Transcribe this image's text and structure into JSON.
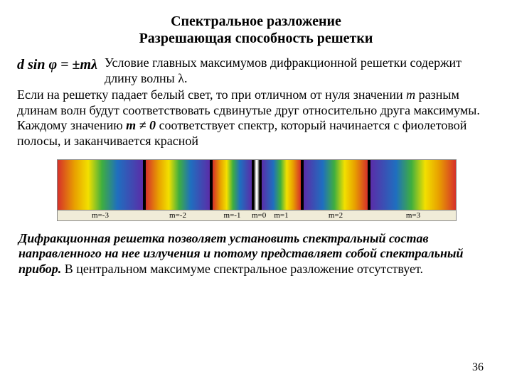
{
  "title_line1": "Спектральное разложение",
  "title_line2": "Разрешающая способность решетки",
  "formula": "d sin φ = ±mλ",
  "para1_a": "Условие главных максимумов дифракционной решетки содержит длину волны λ.",
  "para1_b": "Если на решетку падает белый свет, то при отличном от нуля значении ",
  "para1_m": "m",
  "para1_c": " разным длинам волн будут соответствовать сдвинутые друг относительно друга максимумы. Каждому значению ",
  "para1_mneq": "m ≠ 0",
  "para1_d": " соответствует спектр, который начинается с фиолетовой полосы, и заканчивается красной",
  "spectrum": {
    "orders": [
      {
        "w": 120,
        "kind": "spec-left"
      },
      {
        "w": 4,
        "kind": "gap"
      },
      {
        "w": 90,
        "kind": "spec-left"
      },
      {
        "w": 4,
        "kind": "gap"
      },
      {
        "w": 55,
        "kind": "spec-left"
      },
      {
        "w": 14,
        "kind": "center"
      },
      {
        "w": 55,
        "kind": "spec-right"
      },
      {
        "w": 4,
        "kind": "gap"
      },
      {
        "w": 90,
        "kind": "spec-right"
      },
      {
        "w": 4,
        "kind": "gap"
      },
      {
        "w": 120,
        "kind": "spec-right"
      }
    ],
    "labels": [
      {
        "w": 120,
        "t": "m=-3"
      },
      {
        "w": 4,
        "t": ""
      },
      {
        "w": 90,
        "t": "m=-2"
      },
      {
        "w": 4,
        "t": ""
      },
      {
        "w": 55,
        "t": "m=-1"
      },
      {
        "w": 14,
        "t": "m=0"
      },
      {
        "w": 55,
        "t": "m=1"
      },
      {
        "w": 4,
        "t": ""
      },
      {
        "w": 90,
        "t": "m=2"
      },
      {
        "w": 4,
        "t": ""
      },
      {
        "w": 120,
        "t": "m=3"
      }
    ]
  },
  "conclusion_italic": "Дифракционная решетка позволяет установить спектральный состав направленного на нее излучения и потому представляет собой спектральный прибор.",
  "conclusion_rest": " В центральном максимуме спектральное разложение отсутствует.",
  "page_number": "36"
}
